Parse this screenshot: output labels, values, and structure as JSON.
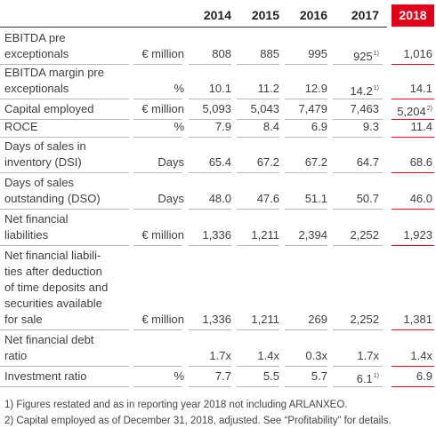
{
  "header": {
    "years": [
      "2014",
      "2015",
      "2016",
      "2017"
    ],
    "highlight_year": "2018"
  },
  "rows": [
    {
      "label": [
        "EBITDA pre",
        "exceptionals"
      ],
      "unit": "€ million",
      "v2014": "808",
      "v2015": "885",
      "v2016": "995",
      "v2017": "925",
      "v2017_note": "1)",
      "v2018": "1,016",
      "v2018_note": ""
    },
    {
      "label": [
        "EBITDA margin pre",
        "exceptionals"
      ],
      "unit": "%",
      "v2014": "10.1",
      "v2015": "11.2",
      "v2016": "12.9",
      "v2017": "14.2",
      "v2017_note": "1)",
      "v2018": "14.1",
      "v2018_note": ""
    },
    {
      "label": [
        "Capital employed"
      ],
      "unit": "€ million",
      "v2014": "5,093",
      "v2015": "5,043",
      "v2016": "7,479",
      "v2017": "7,463",
      "v2017_note": "",
      "v2018": "5,204",
      "v2018_note": "2)"
    },
    {
      "label": [
        "ROCE"
      ],
      "unit": "%",
      "v2014": "7.9",
      "v2015": "8.4",
      "v2016": "6.9",
      "v2017": "9.3",
      "v2017_note": "",
      "v2018": "11.4",
      "v2018_note": ""
    },
    {
      "label": [
        "Days of sales in",
        "inventory (DSI)"
      ],
      "unit": "Days",
      "v2014": "65.4",
      "v2015": "67.2",
      "v2016": "67.2",
      "v2017": "64.7",
      "v2017_note": "",
      "v2018": "68.6",
      "v2018_note": ""
    },
    {
      "label": [
        "Days of sales",
        "outstanding (DSO)"
      ],
      "unit": "Days",
      "v2014": "48.0",
      "v2015": "47.6",
      "v2016": "51.1",
      "v2017": "50.7",
      "v2017_note": "",
      "v2018": "46.0",
      "v2018_note": ""
    },
    {
      "label": [
        "Net financial",
        "liabilities"
      ],
      "unit": "€ million",
      "v2014": "1,336",
      "v2015": "1,211",
      "v2016": "2,394",
      "v2017": "2,252",
      "v2017_note": "",
      "v2018": "1,923",
      "v2018_note": ""
    },
    {
      "label": [
        "Net financial liabili-",
        "ties after deduction",
        "of time deposits and",
        "securities available",
        "for sale"
      ],
      "unit": "€ million",
      "v2014": "1,336",
      "v2015": "1,211",
      "v2016": "269",
      "v2017": "2,252",
      "v2017_note": "",
      "v2018": "1,381",
      "v2018_note": ""
    },
    {
      "label": [
        "Net financial debt",
        "ratio"
      ],
      "unit": "",
      "v2014": "1.7x",
      "v2015": "1.4x",
      "v2016": "0.3x",
      "v2017": "1.7x",
      "v2017_note": "",
      "v2018": "1.4x",
      "v2018_note": ""
    },
    {
      "label": [
        "Investment ratio"
      ],
      "unit": "%",
      "v2014": "7.7",
      "v2015": "5.5",
      "v2016": "5.7",
      "v2017": "6.1",
      "v2017_note": "1)",
      "v2018": "6.9",
      "v2018_note": ""
    }
  ],
  "footnotes": [
    "1) Figures restated and as in reporting year 2018 not including ARLANXEO.",
    "2) Capital employed as of December 31, 2018, adjusted. See “Profitability” for details."
  ],
  "colors": {
    "accent": "#e3001b",
    "text": "#3f3f3f",
    "rule": "#b8b8b8"
  }
}
